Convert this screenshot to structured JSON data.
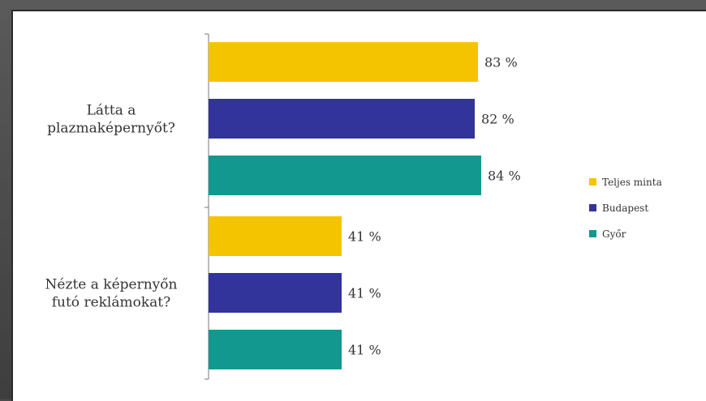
{
  "chart_data": {
    "type": "bar",
    "orientation": "horizontal",
    "categories": [
      [
        "Látta a",
        "plazmaképernyőt?"
      ],
      [
        "Nézte a képernyőn",
        "futó reklámokat?"
      ]
    ],
    "series": [
      {
        "name": "Teljes minta",
        "color": "#f5c400",
        "values": [
          83,
          41
        ]
      },
      {
        "name": "Budapest",
        "color": "#33339c",
        "values": [
          82,
          41
        ]
      },
      {
        "name": "Győr",
        "color": "#12988f",
        "values": [
          84,
          41
        ]
      }
    ],
    "value_suffix": " %",
    "xlim": [
      0,
      100
    ],
    "grid": false,
    "legend_position": "right"
  }
}
